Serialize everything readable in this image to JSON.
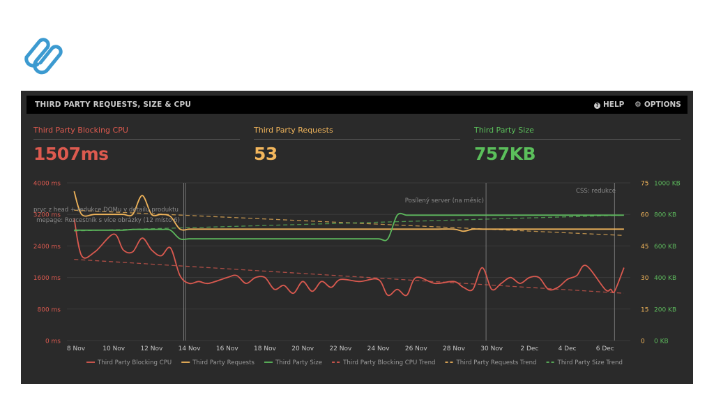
{
  "logo": {
    "icon": "paperclip-s-logo",
    "color": "#3c9ad0"
  },
  "panel": {
    "title": "THIRD PARTY REQUESTS, SIZE & CPU",
    "help_label": "HELP",
    "options_label": "OPTIONS"
  },
  "metrics": [
    {
      "label": "Third Party Blocking CPU",
      "value": "1507ms",
      "color": "#dd5a4f"
    },
    {
      "label": "Third Party Requests",
      "value": "53",
      "color": "#f2b65c"
    },
    {
      "label": "Third Party Size",
      "value": "757KB",
      "color": "#5bbf5b"
    }
  ],
  "colors": {
    "cpu": "#d9594f",
    "requests": "#f0b45a",
    "size": "#5cb85c",
    "grid": "#3a3a3a",
    "annotation": "#8a8a8a",
    "axis_text": "#c8c8c8"
  },
  "chart_data": {
    "type": "line",
    "title": "",
    "x": [
      "7.9 Nov",
      "8.3 Nov",
      "9 Nov",
      "10 Nov",
      "10.5 Nov",
      "11 Nov",
      "11.5 Nov",
      "12 Nov",
      "12.5 Nov",
      "13 Nov",
      "13.5 Nov",
      "14 Nov",
      "14.5 Nov",
      "15 Nov",
      "16 Nov",
      "16.5 Nov",
      "17 Nov",
      "17.5 Nov",
      "18 Nov",
      "18.5 Nov",
      "19 Nov",
      "19.5 Nov",
      "20 Nov",
      "20.5 Nov",
      "21 Nov",
      "21.5 Nov",
      "22 Nov",
      "23 Nov",
      "24 Nov",
      "24.5 Nov",
      "25 Nov",
      "25.5 Nov",
      "26 Nov",
      "27 Nov",
      "28 Nov",
      "28.5 Nov",
      "29 Nov",
      "29.5 Nov",
      "30 Nov",
      "30.5 Nov",
      "1 Dec",
      "1.5 Dec",
      "2 Dec",
      "2.5 Dec",
      "3 Dec",
      "3.5 Dec",
      "4 Dec",
      "4.5 Dec",
      "5 Dec",
      "6 Dec",
      "6.3 Dec",
      "6.5 Dec",
      "7 Dec"
    ],
    "x_ticks": [
      "8 Nov",
      "10 Nov",
      "12 Nov",
      "14 Nov",
      "16 Nov",
      "18 Nov",
      "20 Nov",
      "22 Nov",
      "24 Nov",
      "26 Nov",
      "28 Nov",
      "30 Nov",
      "2 Dec",
      "4 Dec",
      "6 Dec"
    ],
    "y_left": {
      "label": "ms",
      "ticks": [
        "0 ms",
        "800 ms",
        "1600 ms",
        "2400 ms",
        "3200 ms",
        "4000 ms"
      ],
      "range": [
        0,
        4000
      ]
    },
    "y_right_requests": {
      "ticks": [
        "0",
        "15",
        "30",
        "45",
        "60",
        "75"
      ],
      "range": [
        0,
        75
      ]
    },
    "y_right_size": {
      "ticks": [
        "0 KB",
        "200 KB",
        "400 KB",
        "600 KB",
        "800 KB",
        "1000 KB"
      ],
      "range": [
        0,
        1000
      ]
    },
    "series": [
      {
        "name": "Third Party Blocking CPU",
        "axis": "ms",
        "values": [
          3100,
          2150,
          2250,
          2700,
          2300,
          2250,
          2600,
          2300,
          2150,
          2350,
          1650,
          1450,
          1500,
          1450,
          1600,
          1650,
          1450,
          1600,
          1600,
          1300,
          1400,
          1200,
          1500,
          1250,
          1500,
          1350,
          1550,
          1500,
          1550,
          1150,
          1300,
          1150,
          1600,
          1450,
          1500,
          1350,
          1300,
          1850,
          1300,
          1450,
          1600,
          1450,
          1600,
          1600,
          1300,
          1350,
          1550,
          1650,
          1900,
          1300,
          1300,
          1250,
          1850
        ]
      },
      {
        "name": "Third Party Requests",
        "axis": "count",
        "values": [
          71,
          60,
          60,
          60,
          60,
          60,
          69,
          60,
          60,
          59,
          53,
          53,
          53,
          53,
          53,
          53,
          53,
          53,
          53,
          53,
          53,
          53,
          53,
          53,
          53,
          53,
          53,
          53,
          53,
          53,
          53,
          53,
          53,
          53,
          53,
          52,
          53,
          53,
          53,
          53,
          53,
          53,
          53,
          53,
          53,
          53,
          53,
          53,
          53,
          53,
          53,
          53,
          53
        ]
      },
      {
        "name": "Third Party Size",
        "axis": "KB",
        "values": [
          700,
          700,
          700,
          700,
          700,
          705,
          705,
          705,
          705,
          700,
          645,
          645,
          645,
          645,
          645,
          645,
          645,
          645,
          645,
          645,
          645,
          645,
          645,
          645,
          645,
          645,
          645,
          645,
          645,
          645,
          795,
          795,
          795,
          795,
          795,
          795,
          795,
          795,
          795,
          795,
          795,
          795,
          795,
          795,
          795,
          795,
          795,
          795,
          795,
          795,
          795,
          795,
          795
        ]
      },
      {
        "name": "Third Party Blocking CPU Trend",
        "axis": "ms",
        "dashed": true,
        "start": 2060,
        "end": 1200
      },
      {
        "name": "Third Party Requests Trend",
        "axis": "count",
        "dashed": true,
        "start": 62,
        "end": 50
      },
      {
        "name": "Third Party Size Trend",
        "axis": "KB",
        "dashed": true,
        "start": 695,
        "end": 795
      }
    ],
    "annotations": [
      {
        "day": "13.7 Nov",
        "text": "pryc z head + redukce DOMu v detailu produktu"
      },
      {
        "day": "13.8 Nov",
        "text": "mepage: Rozcestník s více obrázky (12 místo 6)"
      },
      {
        "day": "29.7 Nov",
        "text": "Posílený server (na měsíc)"
      },
      {
        "day": "6.5 Dec",
        "text": "CSS: redukce"
      }
    ],
    "legend": [
      "Third Party Blocking CPU",
      "Third Party Requests",
      "Third Party Size",
      "Third Party Blocking CPU Trend",
      "Third Party Requests Trend",
      "Third Party Size Trend"
    ],
    "legend_position": "bottom",
    "grid": true
  }
}
